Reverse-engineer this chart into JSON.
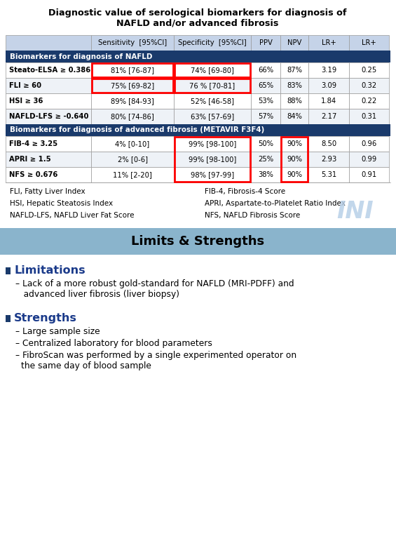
{
  "title_line1": "Diagnostic value of serological biomarkers for diagnosis of",
  "title_line2": "NAFLD and/or advanced fibrosis",
  "col_headers": [
    "",
    "Sensitivity  [95%CI]",
    "Specificity  [95%CI]",
    "PPV",
    "NPV",
    "LR+",
    "LR+"
  ],
  "section1_header": "Biomarkers for diagnosis of NAFLD",
  "section2_header": "Biomarkers for diagnosis of advanced fibrosis (METAVIR F3F4)",
  "rows_nafld": [
    [
      "Steato-ELSA ≥ 0.386",
      "81% [76-87]",
      "74% [69-80]",
      "66%",
      "87%",
      "3.19",
      "0.25"
    ],
    [
      "FLI ≥ 60",
      "75% [69-82]",
      "76 % [70-81]",
      "65%",
      "83%",
      "3.09",
      "0.32"
    ],
    [
      "HSI ≥ 36",
      "89% [84-93]",
      "52% [46-58]",
      "53%",
      "88%",
      "1.84",
      "0.22"
    ],
    [
      "NAFLD-LFS ≥ -0.640",
      "80% [74-86]",
      "63% [57-69]",
      "57%",
      "84%",
      "2.17",
      "0.31"
    ]
  ],
  "rows_fibrosis": [
    [
      "FIB-4 ≥ 3.25",
      "4% [0-10]",
      "99% [98-100]",
      "50%",
      "90%",
      "8.50",
      "0.96"
    ],
    [
      "APRI ≥ 1.5",
      "2% [0-6]",
      "99% [98-100]",
      "25%",
      "90%",
      "2.93",
      "0.99"
    ],
    [
      "NFS ≥ 0.676",
      "11% [2-20]",
      "98% [97-99]",
      "38%",
      "90%",
      "5.31",
      "0.91"
    ]
  ],
  "footnotes_left": [
    "FLI, Fatty Liver Index",
    "HSI, Hepatic Steatosis Index",
    "NAFLD-LFS, NAFLD Liver Fat Score"
  ],
  "footnotes_right": [
    "FIB-4, Fibrosis-4 Score",
    "APRI, Aspartate-to-Platelet Ratio Index",
    "NFS, NAFLD Fibrosis Score"
  ],
  "banner_text": "Limits & Strengths",
  "banner_bg": "#8ab4cc",
  "limitations_title": "Limitations",
  "limitations_items": [
    "Lack of a more robust gold-standard for NAFLD (MRI-PDFF) and",
    "advanced liver fibrosis (liver biopsy)"
  ],
  "strengths_title": "Strengths",
  "strengths_items": [
    "Large sample size",
    "Centralized laboratory for blood parameters",
    "FibroScan was performed by a single experimented operator on",
    "the same day of blood sample"
  ],
  "header_bg": "#c5d3e8",
  "section_bg": "#1a3a6b",
  "row_bg_even": "#ffffff",
  "row_bg_odd": "#eef2f7",
  "bottom_bg": "#ffffff",
  "bullet_color": "#1a3a6b",
  "heading_color": "#1a3a8a",
  "ini_color": "#b8d0e8"
}
